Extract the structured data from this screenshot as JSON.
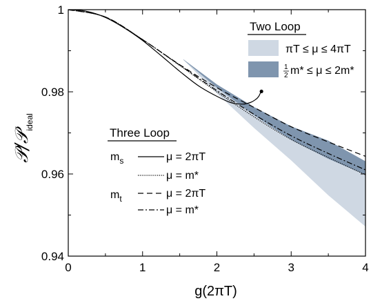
{
  "chart_data": {
    "type": "line",
    "xlabel": "g(2πT)",
    "ylabel_main": "𝒫/𝒫",
    "ylabel_sub": "ideal",
    "xlim": [
      0,
      4
    ],
    "ylim": [
      0.94,
      1.0
    ],
    "xticks": [
      0,
      1,
      2,
      3,
      4
    ],
    "xtick_labels": [
      "0",
      "1",
      "2",
      "3",
      "4"
    ],
    "yticks": [
      0.94,
      0.96,
      0.98,
      1.0
    ],
    "ytick_labels": [
      "0.94",
      "0.96",
      "0.98",
      "1"
    ],
    "colors": {
      "band_light": "#cfd8e3",
      "band_dark": "#7f95ae",
      "line": "#000000"
    },
    "legend_two_loop": {
      "title": "Two Loop",
      "entries": [
        {
          "label": "πT ≤ μ ≤ 4πT",
          "style": "light-band"
        },
        {
          "label_pre": "1",
          "label_frac_den": "2",
          "label": "m* ≤ μ ≤ 2m*",
          "style": "dark-band"
        }
      ]
    },
    "legend_three_loop": {
      "title": "Three Loop",
      "groups": [
        {
          "mass_main": "m",
          "mass_sub": "s",
          "entries": [
            {
              "label": "μ = 2πT",
              "style": "solid"
            },
            {
              "label": "μ = m*",
              "style": "dotted"
            }
          ]
        },
        {
          "mass_main": "m",
          "mass_sub": "t",
          "entries": [
            {
              "label": "μ = 2πT",
              "style": "dashed"
            },
            {
              "label": "μ = m*",
              "style": "dashdot"
            }
          ]
        }
      ]
    },
    "bands": [
      {
        "name": "Two Loop πT ≤ μ ≤ 4πT",
        "x": [
          1.55,
          2.0,
          2.5,
          3.0,
          3.5,
          4.0
        ],
        "upper": [
          0.9878,
          0.9816,
          0.9752,
          0.9705,
          0.9662,
          0.9618
        ],
        "lower": [
          0.9878,
          0.9796,
          0.9712,
          0.9633,
          0.9548,
          0.9472
        ]
      },
      {
        "name": "Two Loop ½m* ≤ μ ≤ 2m*",
        "x": [
          1.55,
          2.0,
          2.5,
          3.0,
          3.5,
          4.0
        ],
        "upper": [
          0.9879,
          0.9818,
          0.9763,
          0.9716,
          0.9681,
          0.9631
        ],
        "lower": [
          0.9878,
          0.981,
          0.9743,
          0.9683,
          0.9637,
          0.9598
        ]
      }
    ],
    "series": [
      {
        "name": "ms μ = 2πT",
        "style": "solid",
        "x": [
          0,
          0.25,
          0.5,
          0.75,
          1.0,
          1.25,
          1.5,
          1.75,
          2.0,
          2.2,
          2.35,
          2.45,
          2.52,
          2.56,
          2.58,
          2.6
        ],
        "y": [
          1.0,
          0.9996,
          0.9981,
          0.9956,
          0.9925,
          0.9888,
          0.985,
          0.9815,
          0.9789,
          0.9773,
          0.977,
          0.9774,
          0.9781,
          0.9788,
          0.9795,
          0.9801
        ]
      },
      {
        "name": "ms μ = m*",
        "style": "dotted",
        "x": [
          0,
          0.5,
          1.0,
          1.5,
          2.0,
          2.5,
          3.0,
          3.5,
          4.0
        ],
        "y": [
          1.0,
          0.9982,
          0.9927,
          0.9864,
          0.98,
          0.9739,
          0.9684,
          0.964,
          0.9598
        ]
      },
      {
        "name": "mt μ = 2πT",
        "style": "dashed",
        "x": [
          0,
          0.5,
          1.0,
          1.5,
          2.0,
          2.5,
          3.0,
          3.5,
          4.0
        ],
        "y": [
          1.0,
          0.9982,
          0.9927,
          0.9866,
          0.981,
          0.9762,
          0.9715,
          0.9678,
          0.9643
        ]
      },
      {
        "name": "mt μ = m*",
        "style": "dashdot",
        "x": [
          0,
          0.5,
          1.0,
          1.5,
          2.0,
          2.5,
          3.0,
          3.5,
          4.0
        ],
        "y": [
          1.0,
          0.9982,
          0.9927,
          0.9865,
          0.9803,
          0.9745,
          0.9693,
          0.965,
          0.961
        ]
      }
    ],
    "endpoint_marker": {
      "x": 2.6,
      "y": 0.9801
    }
  }
}
